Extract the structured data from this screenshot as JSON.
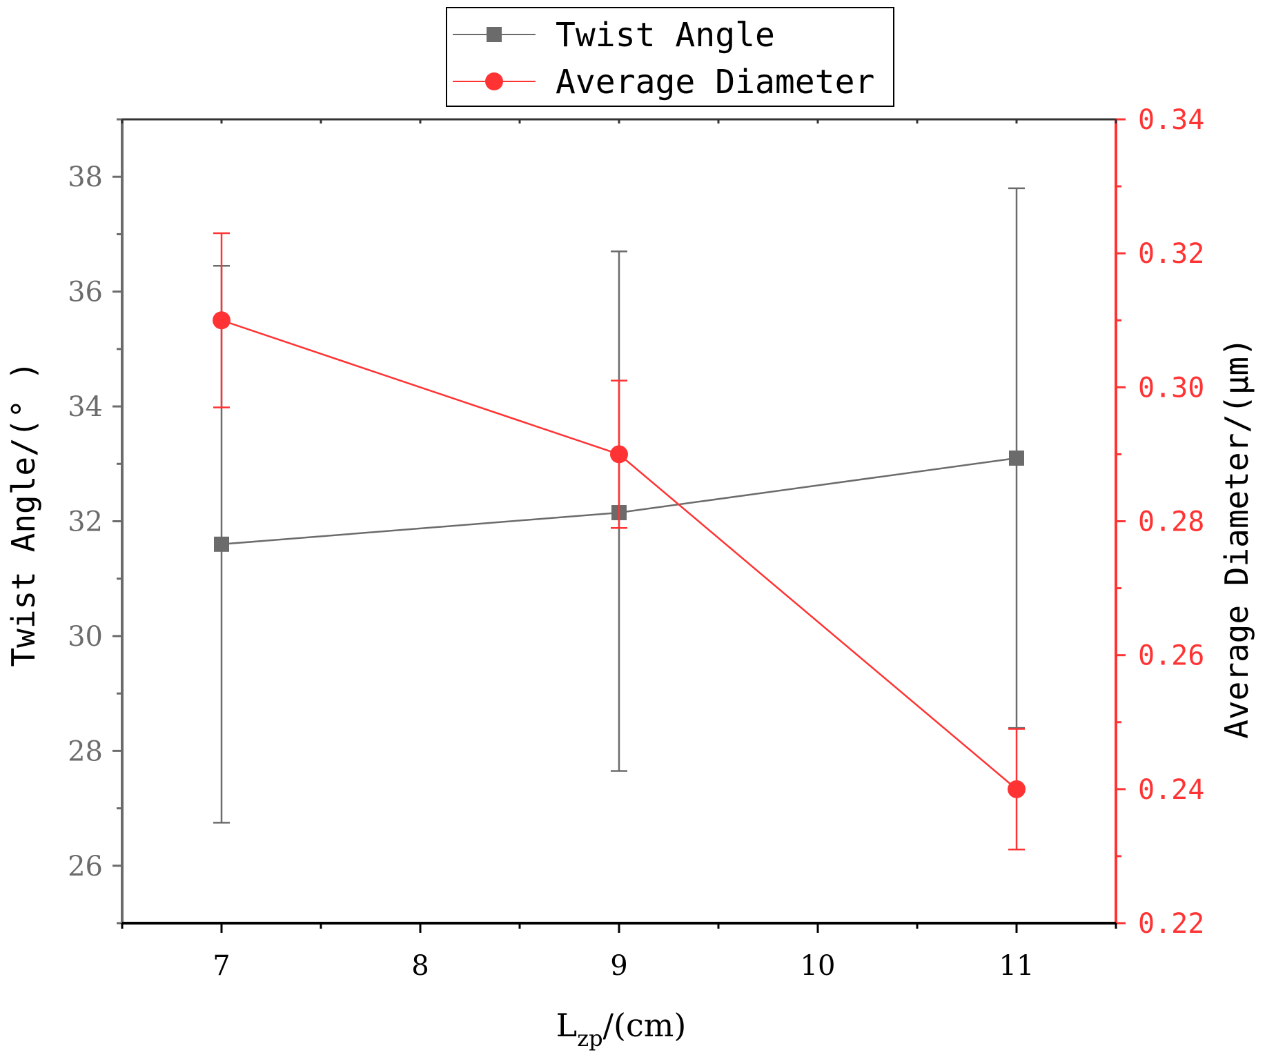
{
  "chart_data": {
    "type": "line",
    "x_axis": {
      "label_main": "L",
      "label_sub": "zp",
      "label_rest": "/(cm)",
      "range": [
        6.5,
        11.5
      ],
      "ticks": [
        7,
        8,
        9,
        10,
        11
      ],
      "minor_ticks": [
        6.5,
        7.5,
        8.5,
        9.5,
        10.5,
        11.5
      ]
    },
    "y_left": {
      "label": "Twist Angle/(° )",
      "range": [
        25,
        39
      ],
      "ticks": [
        26,
        28,
        30,
        32,
        34,
        36,
        38
      ],
      "minor_ticks": [
        25,
        27,
        29,
        31,
        33,
        35,
        37,
        39
      ],
      "color": "#6b6b6b"
    },
    "y_right": {
      "label": "Average Diameter/(μm)",
      "range": [
        0.22,
        0.34
      ],
      "ticks": [
        0.22,
        0.24,
        0.26,
        0.28,
        0.3,
        0.32,
        0.34
      ],
      "tick_labels": [
        "0.22",
        "0.24",
        "0.26",
        "0.28",
        "0.30",
        "0.32",
        "0.34"
      ],
      "minor_ticks": [
        0.23,
        0.25,
        0.27,
        0.29,
        0.31,
        0.33
      ],
      "color": "#ff3333"
    },
    "series": [
      {
        "name": "Twist Angle",
        "axis": "left",
        "marker": "square",
        "color": "#6b6b6b",
        "x": [
          7,
          9,
          11
        ],
        "y": [
          31.6,
          32.15,
          33.1
        ],
        "err_low": [
          26.75,
          27.65,
          28.4
        ],
        "err_high": [
          36.45,
          36.7,
          37.8
        ]
      },
      {
        "name": "Average Diameter",
        "axis": "right",
        "marker": "circle",
        "color": "#ff3333",
        "x": [
          7,
          9,
          11
        ],
        "y": [
          0.31,
          0.29,
          0.24
        ],
        "err_low": [
          0.297,
          0.279,
          0.231
        ],
        "err_high": [
          0.323,
          0.301,
          0.249
        ]
      }
    ],
    "legend": {
      "position": "top-center"
    },
    "grid": false
  }
}
